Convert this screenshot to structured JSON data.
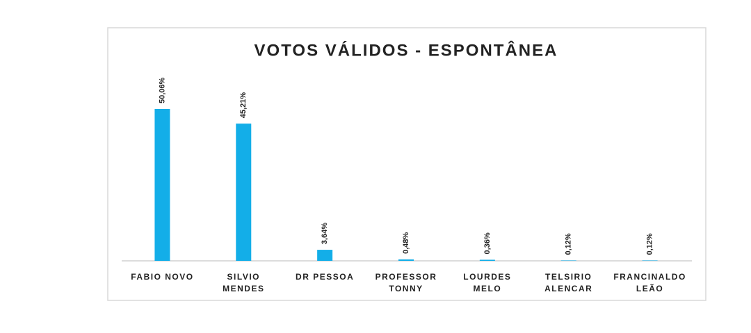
{
  "chart_data": {
    "type": "bar",
    "title": "VOTOS VÁLIDOS - ESPONTÂNEA",
    "categories": [
      "FABIO NOVO",
      "SILVIO\nMENDES",
      "DR PESSOA",
      "PROFESSOR\nTONNY",
      "LOURDES\nMELO",
      "TELSIRIO\nALENCAR",
      "FRANCINALDO\nLEÃO"
    ],
    "values": [
      50.06,
      45.21,
      3.64,
      0.48,
      0.36,
      0.12,
      0.12
    ],
    "value_labels": [
      "50,06%",
      "45,21%",
      "3,64%",
      "0,48%",
      "0,36%",
      "0,12%",
      "0,12%"
    ],
    "color": "#13aee8"
  }
}
